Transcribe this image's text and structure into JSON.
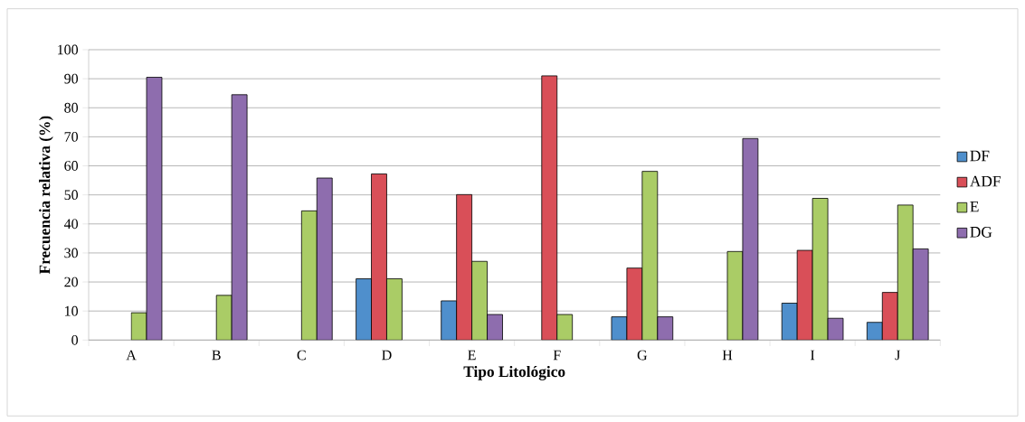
{
  "chart_data": {
    "type": "bar",
    "xlabel": "Tipo Litológico",
    "ylabel": "Frecuencia relativa (%)",
    "categories": [
      "A",
      "B",
      "C",
      "D",
      "E",
      "F",
      "G",
      "H",
      "I",
      "J"
    ],
    "series": [
      {
        "name": "DF",
        "color": "#4f8fcc",
        "values": [
          null,
          null,
          null,
          21.1,
          13.5,
          null,
          8.0,
          null,
          12.7,
          6.1
        ]
      },
      {
        "name": "ADF",
        "color": "#d94f58",
        "values": [
          null,
          null,
          null,
          57.2,
          50.1,
          91,
          24.8,
          null,
          30.9,
          16.4
        ]
      },
      {
        "name": "E",
        "color": "#aacc66",
        "values": [
          9.4,
          15.4,
          44.5,
          21.1,
          27.1,
          8.8,
          58.1,
          30.5,
          48.8,
          46.5
        ]
      },
      {
        "name": "DG",
        "color": "#8e6dae",
        "values": [
          90.5,
          84.5,
          55.8,
          null,
          8.8,
          null,
          8.0,
          69.4,
          7.5,
          31.4
        ]
      }
    ],
    "ylim": [
      0,
      100
    ],
    "yticks": [
      0,
      10,
      20,
      30,
      40,
      50,
      60,
      70,
      80,
      90,
      100
    ],
    "grid": "y",
    "legend": "right"
  }
}
